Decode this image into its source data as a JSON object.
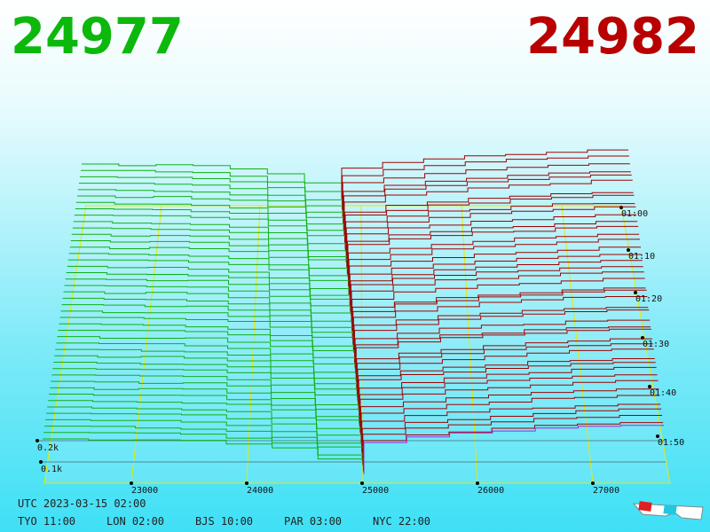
{
  "header": {
    "bid": "24977",
    "ask": "24982"
  },
  "price_axis": [
    "23000",
    "24000",
    "25000",
    "26000",
    "27000"
  ],
  "volume_axis": [
    "0.2k",
    "0.1k"
  ],
  "time_axis": [
    "01:00",
    "01:10",
    "01:20",
    "01:30",
    "01:40",
    "01:50"
  ],
  "footer": {
    "utc": "UTC 2023-03-15 02:00",
    "zones": [
      "TYO 11:00",
      "LON 02:00",
      "BJS 10:00",
      "PAR 03:00",
      "NYC 22:00"
    ]
  }
}
